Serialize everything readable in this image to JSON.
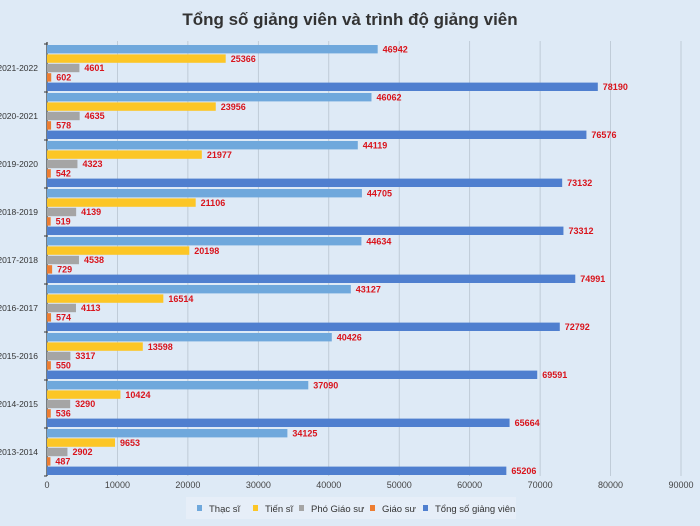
{
  "chart_data": {
    "type": "bar",
    "orientation": "horizontal",
    "title": "Tổng số giảng viên và trình độ giảng viên",
    "categories": [
      "2021-2022",
      "2020-2021",
      "2019-2020",
      "2018-2019",
      "2017-2018",
      "2016-2017",
      "2015-2016",
      "2014-2015",
      "2013-2014"
    ],
    "series": [
      {
        "name": "Thạc sĩ",
        "color": "#6fa8dc",
        "values": [
          46942,
          46062,
          44119,
          44705,
          44634,
          43127,
          40426,
          37090,
          34125
        ]
      },
      {
        "name": "Tiến sĩ",
        "color": "#fcc626",
        "values": [
          25366,
          23956,
          21977,
          21106,
          20198,
          16514,
          13598,
          10424,
          9653
        ]
      },
      {
        "name": "Phó Giáo sư",
        "color": "#a5a5a5",
        "values": [
          4601,
          4635,
          4323,
          4139,
          4538,
          4113,
          3317,
          3290,
          2902
        ]
      },
      {
        "name": "Giáo sư",
        "color": "#ed7d31",
        "values": [
          602,
          578,
          542,
          519,
          729,
          574,
          550,
          536,
          487
        ]
      },
      {
        "name": "Tổng số giảng viên",
        "color": "#4f7fcf",
        "values": [
          78190,
          76576,
          73132,
          73312,
          74991,
          72792,
          69591,
          65664,
          65206
        ]
      }
    ],
    "xlim": [
      0,
      90000
    ],
    "xticks": [
      0,
      10000,
      20000,
      30000,
      40000,
      50000,
      60000,
      70000,
      80000,
      90000
    ],
    "grid": true,
    "legend_position": "bottom",
    "label_color": "#d9141c"
  }
}
